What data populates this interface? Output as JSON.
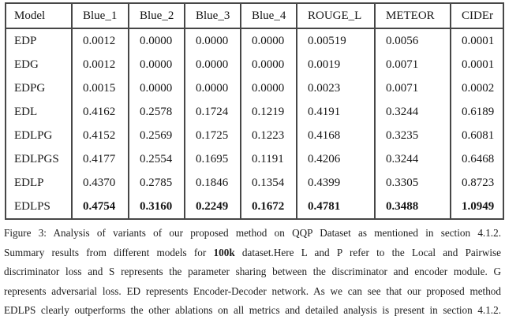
{
  "figure": {
    "table": {
      "columns": [
        "Model",
        "Blue_1",
        "Blue_2",
        "Blue_3",
        "Blue_4",
        "ROUGE_L",
        "METEOR",
        "CIDEr"
      ],
      "rows": [
        {
          "model": "EDP",
          "values": [
            "0.0012",
            "0.0000",
            "0.0000",
            "0.0000",
            "0.00519",
            "0.0056",
            "0.0001"
          ],
          "bold": false
        },
        {
          "model": "EDG",
          "values": [
            "0.0012",
            "0.0000",
            "0.0000",
            "0.0000",
            "0.0019",
            "0.0071",
            "0.0001"
          ],
          "bold": false
        },
        {
          "model": "EDPG",
          "values": [
            "0.0015",
            "0.0000",
            "0.0000",
            "0.0000",
            "0.0023",
            "0.0071",
            "0.0002"
          ],
          "bold": false
        },
        {
          "model": "EDL",
          "values": [
            "0.4162",
            "0.2578",
            "0.1724",
            "0.1219",
            "0.4191",
            "0.3244",
            "0.6189"
          ],
          "bold": false
        },
        {
          "model": "EDLPG",
          "values": [
            "0.4152",
            "0.2569",
            "0.1725",
            "0.1223",
            "0.4168",
            "0.3235",
            "0.6081"
          ],
          "bold": false
        },
        {
          "model": "EDLPGS",
          "values": [
            "0.4177",
            "0.2554",
            "0.1695",
            "0.1191",
            "0.4206",
            "0.3244",
            "0.6468"
          ],
          "bold": false
        },
        {
          "model": "EDLP",
          "values": [
            "0.4370",
            "0.2785",
            "0.1846",
            "0.1354",
            "0.4399",
            "0.3305",
            "0.8723"
          ],
          "bold": false
        },
        {
          "model": "EDLPS",
          "values": [
            "0.4754",
            "0.3160",
            "0.2249",
            "0.1672",
            "0.4781",
            "0.3488",
            "1.0949"
          ],
          "bold": true
        }
      ]
    },
    "caption": {
      "lines": [
        [
          {
            "text": "Figure 3:  Analysis of variants of our proposed method on QQP Dataset as mentioned in section 4.1.2.",
            "bold": false
          }
        ],
        [
          {
            "text": "Summary results from different models for ",
            "bold": false
          },
          {
            "text": "100k",
            "bold": true
          },
          {
            "text": " dataset.Here L and P refer to the Local and Pairwise",
            "bold": false
          }
        ],
        [
          {
            "text": "discriminator loss and S represents the parameter sharing between the discriminator and encoder module. G",
            "bold": false
          }
        ],
        [
          {
            "text": "represents adversarial loss. ED represents Encoder-Decoder network. As we can see that our proposed method",
            "bold": false
          }
        ],
        [
          {
            "text": "EDLPS clearly outperforms the other ablations on all metrics and detailed analysis is present in section 4.1.2.",
            "bold": false
          }
        ]
      ]
    }
  }
}
